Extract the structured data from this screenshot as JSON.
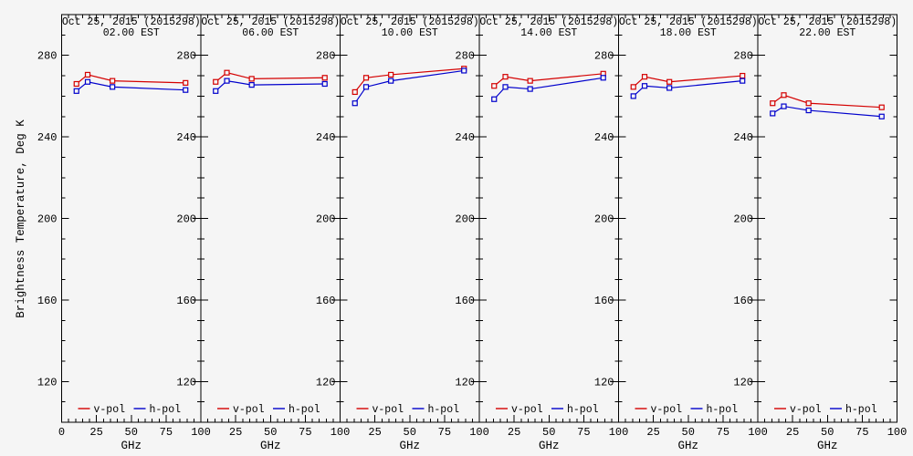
{
  "page": {
    "background": "#f5f5f5",
    "axis_color": "#000000"
  },
  "chart_data": {
    "type": "line",
    "title_date": "Oct 25, 2015 (2015298)",
    "ylabel": "Brightness Temperature, Deg K",
    "xlabel": "GHz",
    "xlim": [
      0,
      100
    ],
    "ylim": [
      100,
      300
    ],
    "x_ticks": [
      0,
      25,
      50,
      75,
      100
    ],
    "y_ticks": [
      120,
      160,
      200,
      240,
      280
    ],
    "x_minor_step": 5,
    "y_minor_step": 10,
    "grid": false,
    "legend_position": "bottom-inside-each-panel",
    "legend": [
      {
        "label": "v-pol",
        "color": "#d40000"
      },
      {
        "label": "h-pol",
        "color": "#0000cc"
      }
    ],
    "x": [
      10.65,
      18.7,
      36.5,
      89
    ],
    "panels": [
      {
        "time": "02.00 EST",
        "series": [
          {
            "name": "v-pol",
            "color": "#d40000",
            "values": [
              266.0,
              270.5,
              267.5,
              266.5
            ]
          },
          {
            "name": "h-pol",
            "color": "#0000cc",
            "values": [
              262.5,
              267.0,
              264.5,
              263.0
            ]
          }
        ]
      },
      {
        "time": "06.00 EST",
        "series": [
          {
            "name": "v-pol",
            "color": "#d40000",
            "values": [
              267.0,
              271.5,
              268.5,
              269.0
            ]
          },
          {
            "name": "h-pol",
            "color": "#0000cc",
            "values": [
              262.5,
              267.5,
              265.5,
              266.0
            ]
          }
        ]
      },
      {
        "time": "10.00 EST",
        "series": [
          {
            "name": "v-pol",
            "color": "#d40000",
            "values": [
              262.0,
              269.0,
              270.5,
              273.5
            ]
          },
          {
            "name": "h-pol",
            "color": "#0000cc",
            "values": [
              256.5,
              264.5,
              267.5,
              272.5
            ]
          }
        ]
      },
      {
        "time": "14.00 EST",
        "series": [
          {
            "name": "v-pol",
            "color": "#d40000",
            "values": [
              265.0,
              269.5,
              267.5,
              271.0
            ]
          },
          {
            "name": "h-pol",
            "color": "#0000cc",
            "values": [
              258.5,
              264.5,
              263.5,
              269.0
            ]
          }
        ]
      },
      {
        "time": "18.00 EST",
        "series": [
          {
            "name": "v-pol",
            "color": "#d40000",
            "values": [
              264.5,
              269.5,
              267.0,
              270.0
            ]
          },
          {
            "name": "h-pol",
            "color": "#0000cc",
            "values": [
              260.0,
              265.0,
              264.0,
              267.5
            ]
          }
        ]
      },
      {
        "time": "22.00 EST",
        "series": [
          {
            "name": "v-pol",
            "color": "#d40000",
            "values": [
              256.5,
              260.5,
              256.5,
              254.5
            ]
          },
          {
            "name": "h-pol",
            "color": "#0000cc",
            "values": [
              251.5,
              255.0,
              253.0,
              250.0
            ]
          }
        ]
      }
    ]
  }
}
